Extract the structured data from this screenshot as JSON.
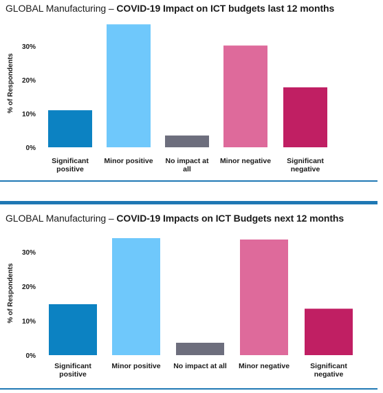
{
  "colors": {
    "significant_positive": "#0c82c2",
    "minor_positive": "#6fc8fb",
    "no_impact": "#6d6e7d",
    "minor_negative": "#de6a9b",
    "significant_negative": "#c01f63",
    "rule": "#1f78b4",
    "gridline": "#e6e6e6"
  },
  "chart_data": [
    {
      "type": "bar",
      "title_prefix": "GLOBAL Manufacturing – ",
      "title": "COVID-19 Impact on ICT budgets last 12 months",
      "ylabel": "% of Respondents",
      "xlabel": "",
      "ylim": [
        0,
        38
      ],
      "yticks": [
        0,
        10,
        20,
        30
      ],
      "ytick_labels": [
        "0%",
        "10%",
        "20%",
        "30%"
      ],
      "categories": [
        "Significant positive",
        "Minor positive",
        "No impact at all",
        "Minor negative",
        "Significant negative"
      ],
      "category_labels": [
        [
          "Significant",
          "positive"
        ],
        [
          "Minor positive"
        ],
        [
          "No impact at",
          "all"
        ],
        [
          "Minor negative"
        ],
        [
          "Significant",
          "negative"
        ]
      ],
      "values": [
        11.0,
        36.5,
        3.5,
        30.2,
        17.8
      ],
      "legend": "none",
      "grid": false
    },
    {
      "type": "bar",
      "title_prefix": "GLOBAL Manufacturing – ",
      "title": "COVID-19 Impacts on ICT Budgets next 12 months",
      "ylabel": "% of Respondents",
      "xlabel": "",
      "ylim": [
        0,
        36
      ],
      "yticks": [
        0,
        10,
        20,
        30
      ],
      "ytick_labels": [
        "0%",
        "10%",
        "20%",
        "30%"
      ],
      "categories": [
        "Significant positive",
        "Minor positive",
        "No impact at all",
        "Minor negative",
        "Significant negative"
      ],
      "category_labels": [
        [
          "Significant",
          "positive"
        ],
        [
          "Minor positive"
        ],
        [
          "No impact at all"
        ],
        [
          "Minor negative"
        ],
        [
          "Significant",
          "negative"
        ]
      ],
      "values": [
        14.8,
        34.0,
        3.6,
        33.6,
        13.5
      ],
      "legend": "none",
      "grid": false
    }
  ]
}
